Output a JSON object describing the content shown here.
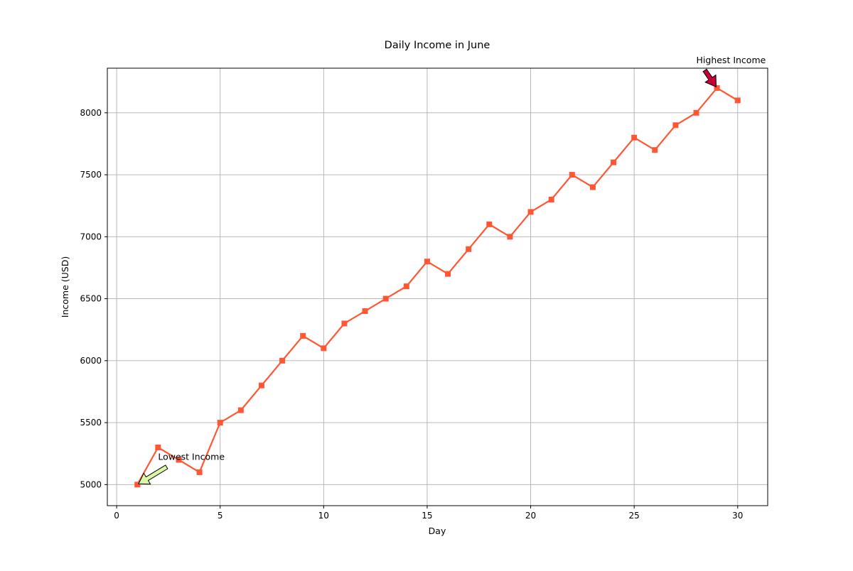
{
  "chart_data": {
    "type": "line",
    "title": "Daily Income in June",
    "xlabel": "Day",
    "ylabel": "Income (USD)",
    "xlim": [
      -0.45,
      31.45
    ],
    "ylim": [
      4830,
      8360
    ],
    "xticks": [
      0,
      5,
      10,
      15,
      20,
      25,
      30
    ],
    "yticks": [
      5000,
      5500,
      6000,
      6500,
      7000,
      7500,
      8000
    ],
    "grid": true,
    "x": [
      1,
      2,
      3,
      4,
      5,
      6,
      7,
      8,
      9,
      10,
      11,
      12,
      13,
      14,
      15,
      16,
      17,
      18,
      19,
      20,
      21,
      22,
      23,
      24,
      25,
      26,
      27,
      28,
      29,
      30
    ],
    "series": [
      {
        "values": [
          5000,
          5300,
          5200,
          5100,
          5500,
          5600,
          5800,
          6000,
          6200,
          6100,
          6300,
          6400,
          6500,
          6600,
          6800,
          6700,
          6900,
          7100,
          7000,
          7200,
          7300,
          7500,
          7400,
          7600,
          7800,
          7700,
          7900,
          8000,
          8200,
          8100
        ],
        "color": "#ff5733",
        "marker": "square"
      }
    ],
    "annotations": [
      {
        "text": "Lowest Income",
        "x": 1,
        "y": 5000,
        "text_x": 2,
        "text_y": 5200,
        "arrow_color": "#daf7a6"
      },
      {
        "text": "Highest Income",
        "x": 29,
        "y": 8200,
        "text_x": 28,
        "text_y": 8400,
        "arrow_color": "#c70039"
      }
    ]
  }
}
